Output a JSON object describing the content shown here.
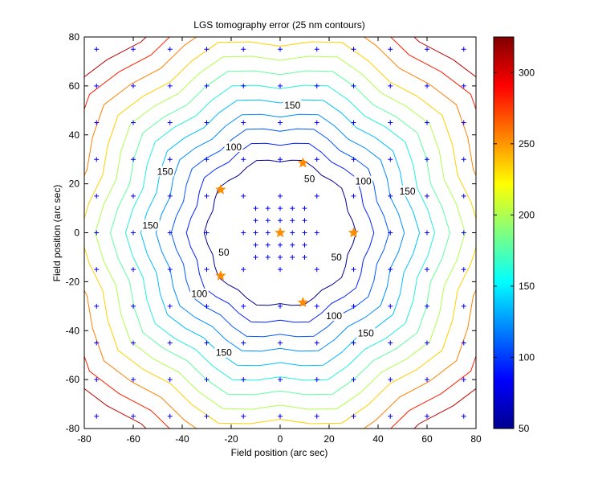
{
  "chart_data": {
    "type": "contour",
    "title": "LGS tomography error (25 nm contours)",
    "xlabel": "Field position (arc sec)",
    "ylabel": "Field position (arc sec)",
    "xlim": [
      -80,
      80
    ],
    "ylim": [
      -80,
      80
    ],
    "xticks": [
      -80,
      -60,
      -40,
      -20,
      0,
      20,
      40,
      60,
      80
    ],
    "yticks": [
      -80,
      -60,
      -40,
      -20,
      0,
      20,
      40,
      60,
      80
    ],
    "grid": false,
    "colorbar": {
      "range": [
        50,
        325
      ],
      "ticks": [
        50,
        100,
        150,
        200,
        250,
        300
      ],
      "colormap": "jet"
    },
    "contour_levels": [
      {
        "level": 50,
        "radius": 30,
        "color": "#00008f"
      },
      {
        "level": 75,
        "radius": 37,
        "color": "#0020ff"
      },
      {
        "level": 100,
        "radius": 43,
        "color": "#0055ff"
      },
      {
        "level": 125,
        "radius": 49,
        "color": "#008cff"
      },
      {
        "level": 150,
        "radius": 55,
        "color": "#00c0ff"
      },
      {
        "level": 175,
        "radius": 61,
        "color": "#20f0e0"
      },
      {
        "level": 200,
        "radius": 67,
        "color": "#60ff9f"
      },
      {
        "level": 225,
        "radius": 73,
        "color": "#b0ff50"
      },
      {
        "level": 250,
        "radius": 79,
        "color": "#ffd000"
      },
      {
        "level": 275,
        "radius": 86,
        "color": "#ff8000"
      },
      {
        "level": 300,
        "radius": 93,
        "color": "#ff2000"
      },
      {
        "level": 325,
        "radius": 100,
        "color": "#c00000"
      }
    ],
    "contour_labels": [
      {
        "text": "150",
        "x": 5,
        "y": 52
      },
      {
        "text": "100",
        "x": -19,
        "y": 35
      },
      {
        "text": "50",
        "x": 12,
        "y": 22
      },
      {
        "text": "150",
        "x": -47,
        "y": 25
      },
      {
        "text": "100",
        "x": 34,
        "y": 21
      },
      {
        "text": "150",
        "x": 52,
        "y": 17
      },
      {
        "text": "150",
        "x": -53,
        "y": 3
      },
      {
        "text": "50",
        "x": -23,
        "y": -8
      },
      {
        "text": "50",
        "x": 23,
        "y": -10
      },
      {
        "text": "100",
        "x": -33,
        "y": -25
      },
      {
        "text": "100",
        "x": 22,
        "y": -34
      },
      {
        "text": "150",
        "x": 35,
        "y": -41
      },
      {
        "text": "150",
        "x": -23,
        "y": -49
      }
    ],
    "sample_grid": {
      "outer_values": [
        -75,
        -60,
        -45,
        -30,
        -15,
        0,
        15,
        30,
        45,
        60,
        75
      ],
      "inner_values": [
        -10,
        -5,
        0,
        5,
        10
      ],
      "color": "#0000ff"
    },
    "guide_stars": [
      {
        "x": 0,
        "y": 0
      },
      {
        "x": 9.3,
        "y": 28.5
      },
      {
        "x": -24.3,
        "y": 17.6
      },
      {
        "x": -24.3,
        "y": -17.6
      },
      {
        "x": 9.3,
        "y": -28.5
      },
      {
        "x": 30,
        "y": 0
      }
    ],
    "guide_star_color": "#ff8c00"
  }
}
